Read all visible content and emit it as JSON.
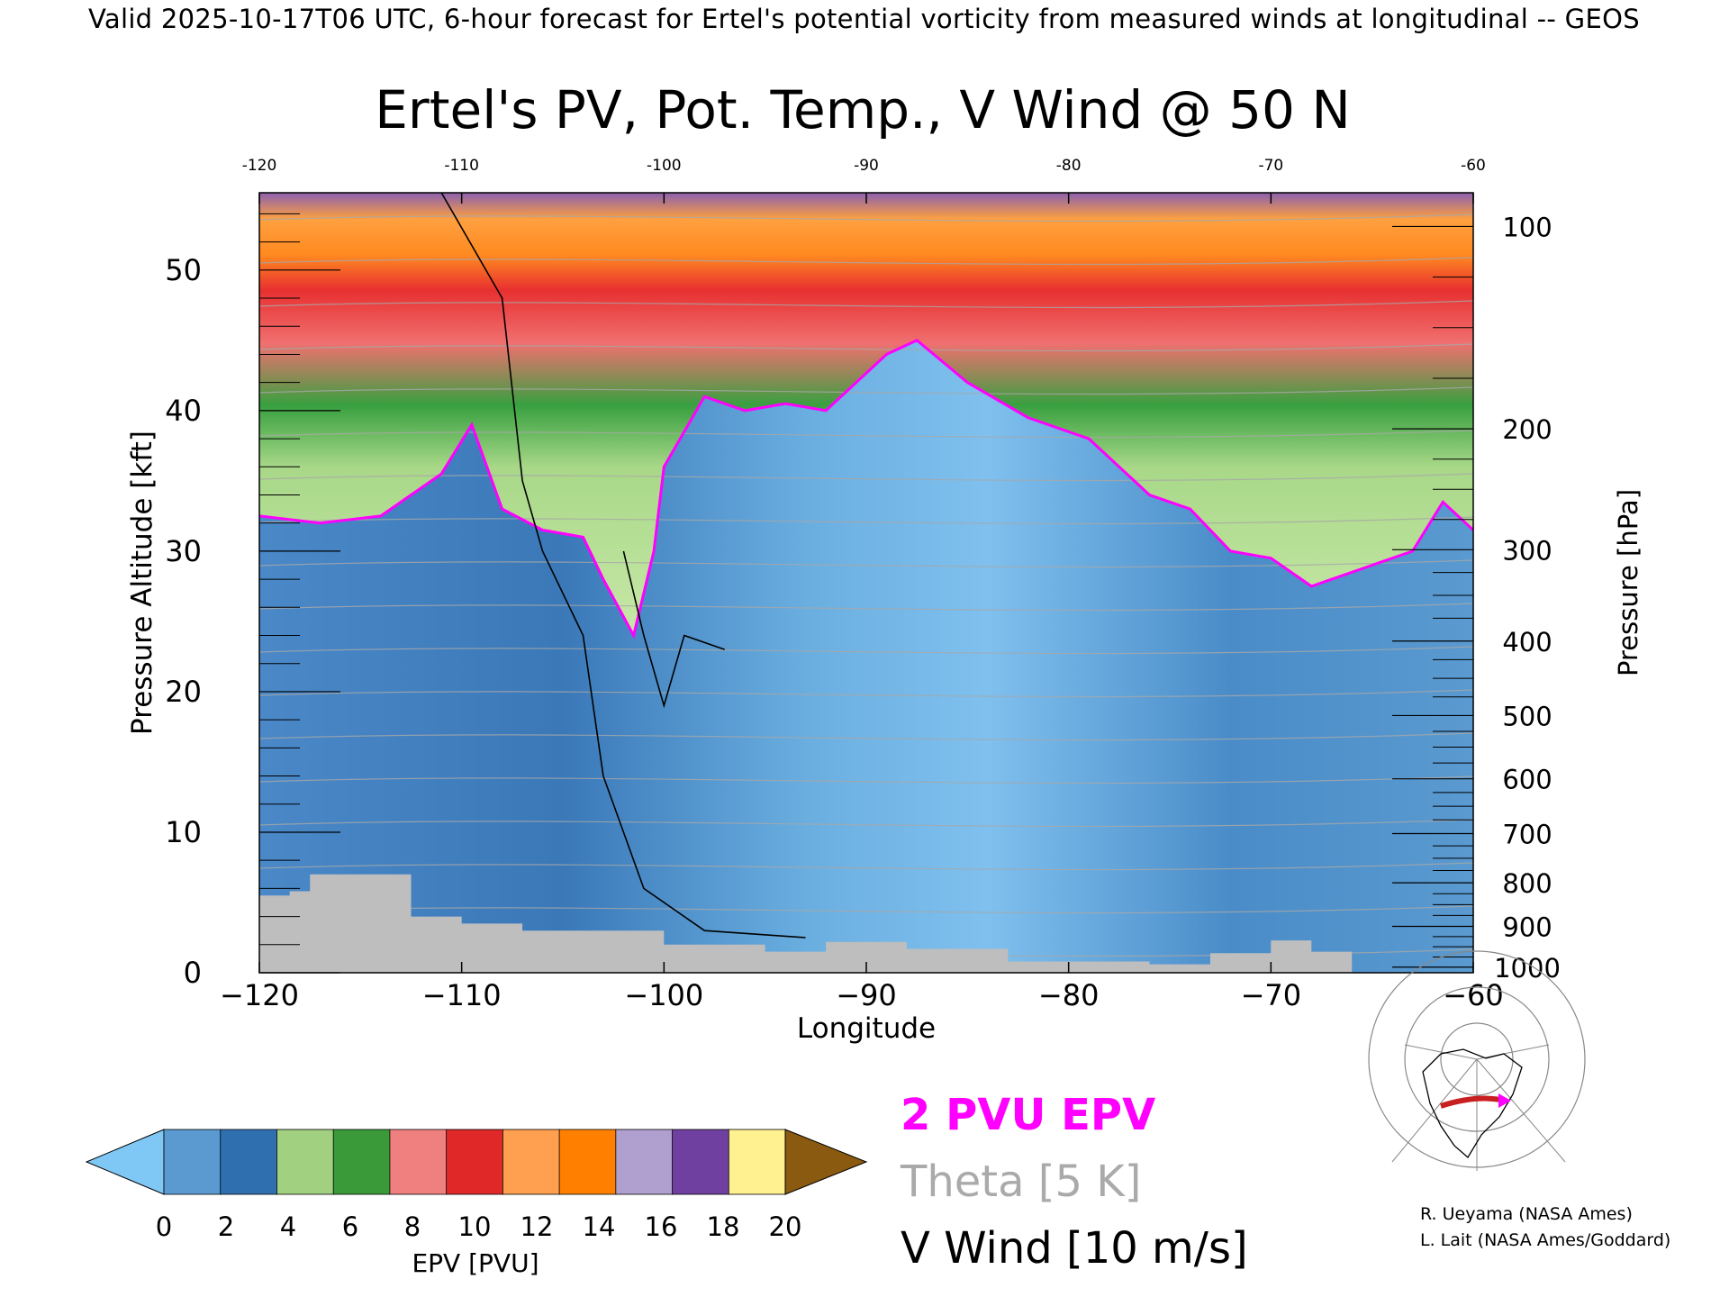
{
  "header": "Valid 2025-10-17T06 UTC, 6-hour forecast for Ertel's potential vorticity from measured winds at longitudinal -- GEOS",
  "chart_data": {
    "type": "heatmap",
    "title": "Ertel's PV, Pot. Temp., V Wind @ 50 N",
    "xlabel": "Longitude",
    "ylabel_left": "Pressure Altitude [kft]",
    "ylabel_right": "Pressure [hPa]",
    "xlim": [
      -120,
      -60
    ],
    "ylim": [
      0,
      55.5
    ],
    "x_ticks": [
      -120,
      -110,
      -100,
      -90,
      -80,
      -70,
      -60
    ],
    "x_tick_labels_bottom": [
      "−120",
      "−110",
      "−100",
      "−90",
      "−80",
      "−70",
      "−60"
    ],
    "x_tick_labels_top": [
      "-120",
      "-110",
      "-100",
      "-90",
      "-80",
      "-70",
      "-60"
    ],
    "y_ticks_left": [
      "0",
      "10",
      "20",
      "30",
      "40",
      "50"
    ],
    "y_ticks_right": [
      {
        "label": "1000",
        "kft": 0.4
      },
      {
        "label": "900",
        "kft": 3.3
      },
      {
        "label": "800",
        "kft": 6.4
      },
      {
        "label": "700",
        "kft": 9.9
      },
      {
        "label": "600",
        "kft": 13.8
      },
      {
        "label": "500",
        "kft": 18.3
      },
      {
        "label": "400",
        "kft": 23.6
      },
      {
        "label": "300",
        "kft": 30.1
      },
      {
        "label": "200",
        "kft": 38.7
      },
      {
        "label": "100",
        "kft": 53.1
      }
    ],
    "legend": [
      "2 PVU EPV",
      "Theta [5 K]",
      "V Wind [10 m/s]"
    ],
    "legend_colors": {
      "epv2": "#ff00ff",
      "theta": "#aaaaaa",
      "vwind": "#000000"
    },
    "colorbar": {
      "label": "EPV [PVU]",
      "ticks": [
        "0",
        "2",
        "4",
        "6",
        "8",
        "10",
        "12",
        "14",
        "16",
        "18",
        "20"
      ],
      "colors": [
        "#5a9ad0",
        "#2f6fb0",
        "#a0d080",
        "#3a9a3a",
        "#f08080",
        "#e02828",
        "#ffa050",
        "#ff8000",
        "#b0a0d0",
        "#7040a0",
        "#fff090"
      ],
      "under_color": "#7fc8f5",
      "over_color": "#8a5a10"
    },
    "tropopause_2pvu_kft": [
      {
        "lon": -120,
        "kft": 32.5
      },
      {
        "lon": -117,
        "kft": 32.0
      },
      {
        "lon": -114,
        "kft": 32.5
      },
      {
        "lon": -111,
        "kft": 35.5
      },
      {
        "lon": -109.5,
        "kft": 39.0
      },
      {
        "lon": -108,
        "kft": 33.0
      },
      {
        "lon": -106,
        "kft": 31.5
      },
      {
        "lon": -104,
        "kft": 31.0
      },
      {
        "lon": -103,
        "kft": 28.0
      },
      {
        "lon": -101.5,
        "kft": 24.0
      },
      {
        "lon": -100.5,
        "kft": 30.0
      },
      {
        "lon": -100,
        "kft": 36.0
      },
      {
        "lon": -98,
        "kft": 41.0
      },
      {
        "lon": -96,
        "kft": 40.0
      },
      {
        "lon": -94,
        "kft": 40.5
      },
      {
        "lon": -92,
        "kft": 40.0
      },
      {
        "lon": -89,
        "kft": 44.0
      },
      {
        "lon": -87.5,
        "kft": 45.0
      },
      {
        "lon": -85,
        "kft": 42.0
      },
      {
        "lon": -82,
        "kft": 39.5
      },
      {
        "lon": -79,
        "kft": 38.0
      },
      {
        "lon": -76,
        "kft": 34.0
      },
      {
        "lon": -74,
        "kft": 33.0
      },
      {
        "lon": -72,
        "kft": 30.0
      },
      {
        "lon": -70,
        "kft": 29.5
      },
      {
        "lon": -68,
        "kft": 27.5
      },
      {
        "lon": -65,
        "kft": 29.0
      },
      {
        "lon": -63,
        "kft": 30.0
      },
      {
        "lon": -61.5,
        "kft": 33.5
      },
      {
        "lon": -60,
        "kft": 31.5
      }
    ],
    "surface_kft": [
      {
        "lon": -120,
        "kft": 5.5
      },
      {
        "lon": -118.5,
        "kft": 5.8
      },
      {
        "lon": -117.5,
        "kft": 7.0
      },
      {
        "lon": -114,
        "kft": 7.0
      },
      {
        "lon": -112.5,
        "kft": 4.0
      },
      {
        "lon": -110,
        "kft": 3.5
      },
      {
        "lon": -107,
        "kft": 3.0
      },
      {
        "lon": -103,
        "kft": 3.0
      },
      {
        "lon": -100,
        "kft": 2.0
      },
      {
        "lon": -95,
        "kft": 1.5
      },
      {
        "lon": -92,
        "kft": 2.2
      },
      {
        "lon": -88,
        "kft": 1.7
      },
      {
        "lon": -83,
        "kft": 0.8
      },
      {
        "lon": -76,
        "kft": 0.6
      },
      {
        "lon": -73,
        "kft": 1.4
      },
      {
        "lon": -70,
        "kft": 2.3
      },
      {
        "lon": -68,
        "kft": 1.5
      },
      {
        "lon": -66,
        "kft": 0.0
      }
    ],
    "vwind_zero_contour_kft": [
      {
        "lon": -111,
        "kft": 55.5
      },
      {
        "lon": -108,
        "kft": 48.0
      },
      {
        "lon": -107,
        "kft": 35.0
      },
      {
        "lon": -106,
        "kft": 30.0
      },
      {
        "lon": -104,
        "kft": 24.0
      },
      {
        "lon": -103,
        "kft": 14.0
      },
      {
        "lon": -101,
        "kft": 6.0
      },
      {
        "lon": -98,
        "kft": 3.0
      },
      {
        "lon": -93,
        "kft": 2.5
      }
    ],
    "vwind_30_contour_kft": [
      {
        "lon": -102,
        "kft": 30.0
      },
      {
        "lon": -101,
        "kft": 24.0
      },
      {
        "lon": -100,
        "kft": 19.0
      },
      {
        "lon": -99,
        "kft": 24.0
      },
      {
        "lon": -97,
        "kft": 23.0
      }
    ]
  },
  "colorbar_label": "EPV [PVU]",
  "credits": [
    "R. Ueyama (NASA Ames)",
    "L. Lait (NASA Ames/Goddard)"
  ]
}
